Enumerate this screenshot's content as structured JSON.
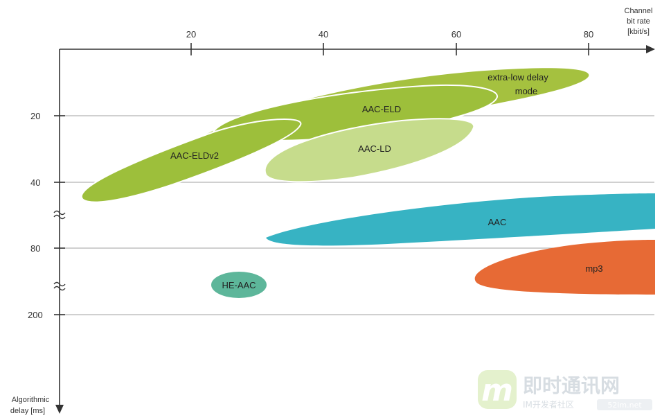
{
  "x_axis": {
    "title_lines": [
      "Channel",
      "bit rate",
      "[kbit/s]"
    ],
    "ticks": [
      "20",
      "40",
      "60",
      "80"
    ]
  },
  "y_axis": {
    "title_lines": [
      "Algorithmic",
      "delay [ms]"
    ],
    "ticks": [
      "20",
      "40",
      "80",
      "200"
    ]
  },
  "regions": {
    "extra_low_delay": {
      "label_lines": [
        "extra-low delay",
        "mode"
      ],
      "color": "#a5c13f"
    },
    "aac_eld": {
      "label": "AAC-ELD",
      "color": "#9dbf3b"
    },
    "aac_eldv2": {
      "label": "AAC-ELDv2",
      "color": "#9dbf3b"
    },
    "aac_ld": {
      "label": "AAC-LD",
      "color": "#c6dc8c"
    },
    "aac": {
      "label": "AAC",
      "color": "#37b3c3"
    },
    "mp3": {
      "label": "mp3",
      "color": "#e76a35"
    },
    "he_aac": {
      "label": "HE-AAC",
      "color": "#5db69a"
    }
  },
  "watermark": {
    "logo_letter": "m",
    "title": "即时通讯网",
    "subtitle": "IM开发者社区",
    "site": "52im.net"
  }
}
